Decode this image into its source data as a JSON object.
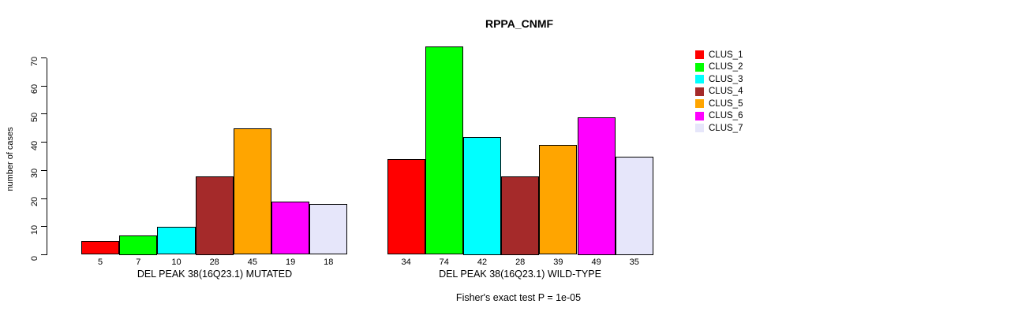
{
  "chart_data": {
    "type": "bar",
    "title": "RPPA_CNMF",
    "ylabel": "number of cases",
    "ylim": [
      0,
      70
    ],
    "yticks": [
      0,
      10,
      20,
      30,
      40,
      50,
      60,
      70
    ],
    "grid": false,
    "legend_position": "top-right-outside",
    "legend": [
      {
        "label": "CLUS_1",
        "color": "#FF0000"
      },
      {
        "label": "CLUS_2",
        "color": "#00FF00"
      },
      {
        "label": "CLUS_3",
        "color": "#00FFFF"
      },
      {
        "label": "CLUS_4",
        "color": "#A52A2A"
      },
      {
        "label": "CLUS_5",
        "color": "#FFA500"
      },
      {
        "label": "CLUS_6",
        "color": "#FF00FF"
      },
      {
        "label": "CLUS_7",
        "color": "#E6E6FA"
      }
    ],
    "groups": [
      {
        "label": "DEL PEAK 38(16Q23.1) MUTATED",
        "values": [
          5,
          7,
          10,
          28,
          45,
          19,
          18
        ]
      },
      {
        "label": "DEL PEAK 38(16Q23.1) WILD-TYPE",
        "values": [
          34,
          74,
          42,
          28,
          39,
          49,
          35
        ]
      }
    ],
    "annotation": "Fisher's exact test P = 1e-05",
    "bar_border_color": "#000000",
    "axis_color": "#000000",
    "background": "#FFFFFF"
  }
}
